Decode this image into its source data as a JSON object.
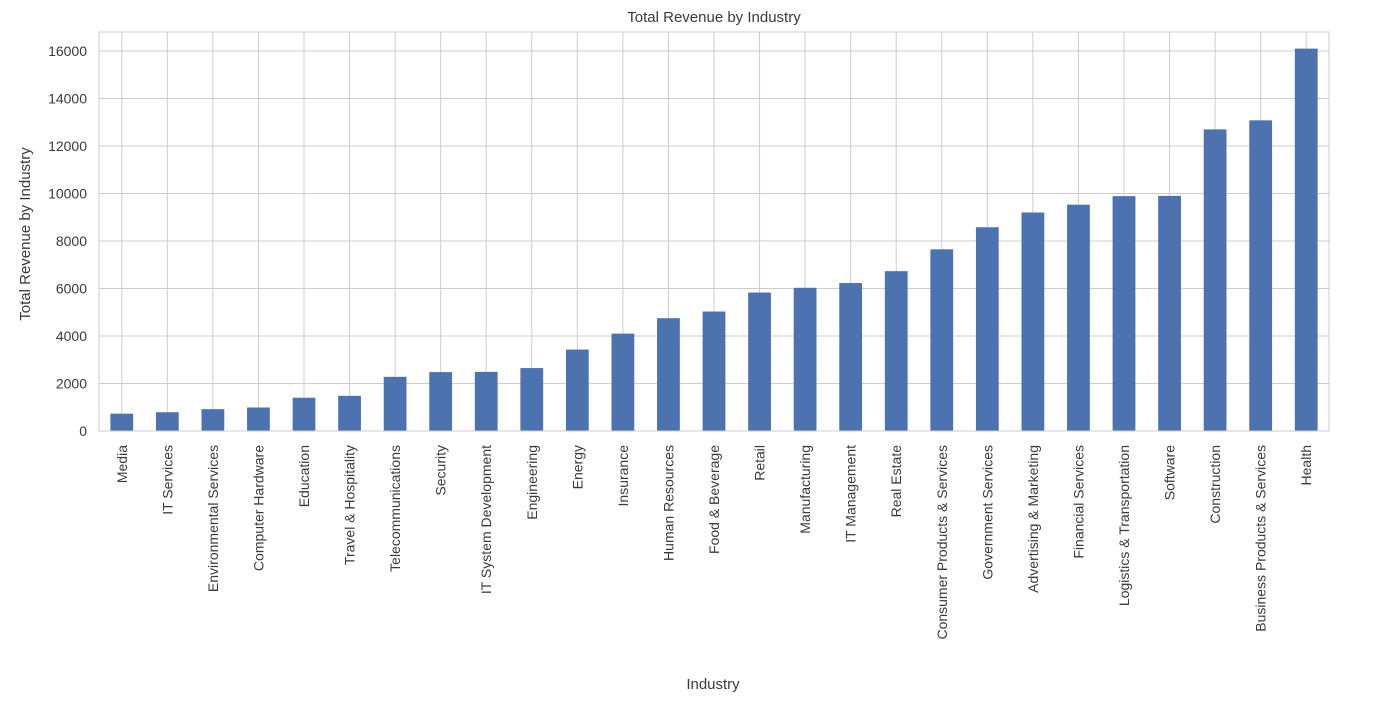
{
  "chart_data": {
    "type": "bar",
    "title": "Total Revenue by Industry",
    "xlabel": "Industry",
    "ylabel": "Total Revenue by Industry",
    "ylim": [
      0,
      16800
    ],
    "yticks": [
      0,
      2000,
      4000,
      6000,
      8000,
      10000,
      12000,
      14000,
      16000
    ],
    "grid": true,
    "bar_color": "#4c72b0",
    "grid_color": "#cccccc",
    "categories": [
      "Media",
      "IT Services",
      "Environmental Services",
      "Computer Hardware",
      "Education",
      "Travel & Hospitality",
      "Telecommunications",
      "Security",
      "IT System Development",
      "Engineering",
      "Energy",
      "Insurance",
      "Human Resources",
      "Food & Beverage",
      "Retail",
      "Manufacturing",
      "IT Management",
      "Real Estate",
      "Consumer Products & Services",
      "Government Services",
      "Advertising & Marketing",
      "Financial Services",
      "Logistics & Transportation",
      "Software",
      "Construction",
      "Business Products & Services",
      "Health"
    ],
    "values": [
      730,
      790,
      920,
      990,
      1400,
      1480,
      2280,
      2480,
      2490,
      2650,
      3430,
      4100,
      4750,
      5030,
      5830,
      6030,
      6230,
      6730,
      7650,
      8580,
      9200,
      9530,
      9890,
      9900,
      12700,
      13080,
      16100
    ]
  }
}
